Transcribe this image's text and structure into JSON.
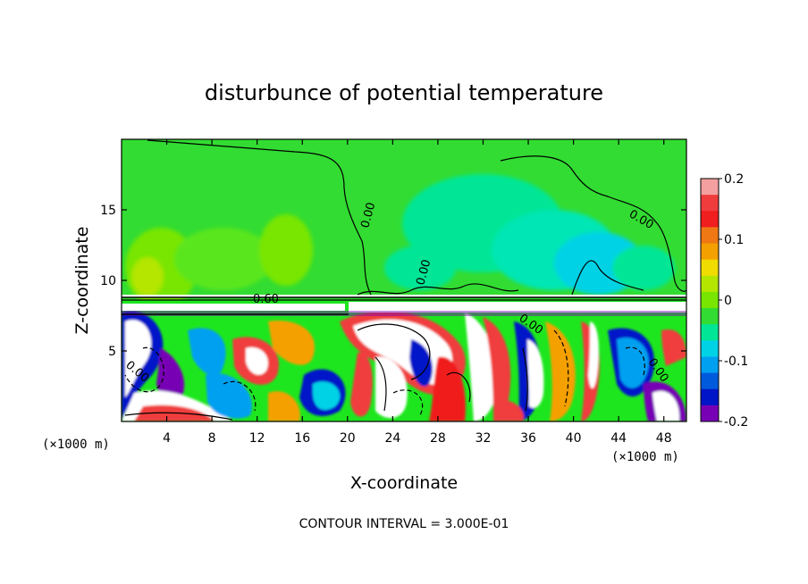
{
  "chart_data": {
    "type": "heatmap",
    "title": "disturbunce of potential temperature",
    "xlabel": "X-coordinate",
    "ylabel": "Z-coordinate",
    "x_unit": "(×1000 m)",
    "z_unit": "(×1000 m)",
    "xlim": [
      0,
      50
    ],
    "ylim": [
      0,
      20
    ],
    "x_ticks": [
      4,
      8,
      12,
      16,
      20,
      24,
      28,
      32,
      36,
      40,
      44,
      48
    ],
    "y_ticks": [
      5,
      10,
      15
    ],
    "colorbar": {
      "range": [
        -0.2,
        0.2
      ],
      "ticks": [
        "0.2",
        "0.1",
        "0",
        "-0.1",
        "-0.2"
      ],
      "colors": [
        "#f4a0a0",
        "#f03c3c",
        "#f01e1e",
        "#f07814",
        "#f4a000",
        "#f0dc00",
        "#b4e600",
        "#78e600",
        "#32dc32",
        "#00e696",
        "#00d2e6",
        "#00a0f0",
        "#005adc",
        "#0014c8",
        "#7800b4"
      ]
    },
    "contour_interval": "CONTOUR INTERVAL = 3.000E-01",
    "contour_labels": [
      "0.60",
      "0.00",
      "0.00",
      "0.00",
      "0.00",
      "0.00",
      "0.00",
      "0.00",
      "0.00",
      "0.00"
    ]
  }
}
